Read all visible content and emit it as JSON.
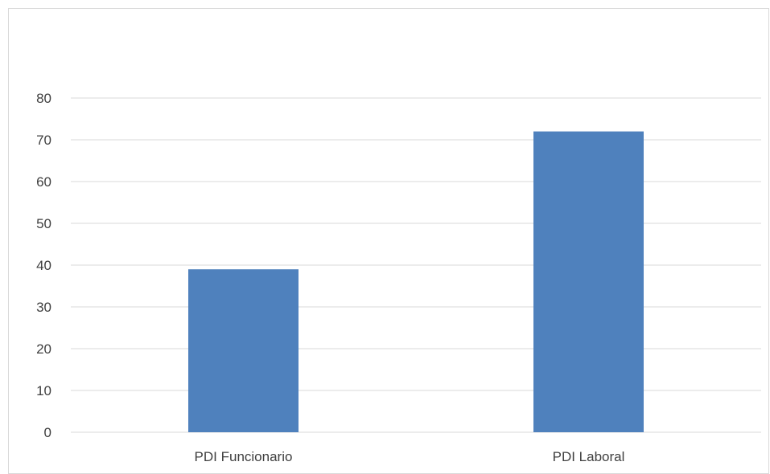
{
  "chart_data": {
    "type": "bar",
    "title": "",
    "xlabel": "",
    "ylabel": "",
    "categories": [
      "PDI Funcionario",
      "PDI Laboral"
    ],
    "values": [
      39,
      72
    ],
    "ylim": [
      0,
      80
    ],
    "yticks": [
      "0",
      "10",
      "20",
      "30",
      "40",
      "50",
      "60",
      "70",
      "80"
    ],
    "grid": true,
    "legend": "none",
    "colors": {
      "bar": "#4f81bd",
      "grid": "#d9d9d9",
      "text": "#404040",
      "border": "#d9d9d9"
    }
  }
}
